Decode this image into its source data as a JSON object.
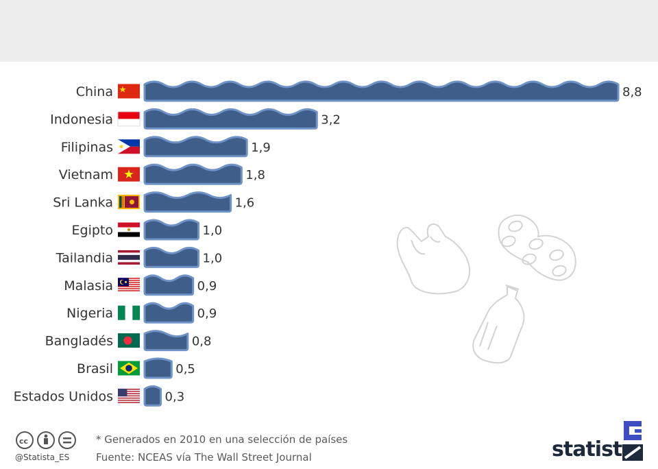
{
  "chart_data": {
    "type": "bar",
    "orientation": "horizontal",
    "categories": [
      "China",
      "Indonesia",
      "Filipinas",
      "Vietnam",
      "Sri Lanka",
      "Egipto",
      "Tailandia",
      "Malasia",
      "Nigeria",
      "Bangladés",
      "Brasil",
      "Estados Unidos"
    ],
    "values": [
      8.8,
      3.2,
      1.9,
      1.8,
      1.6,
      1.0,
      1.0,
      0.9,
      0.9,
      0.8,
      0.5,
      0.3
    ],
    "value_labels": [
      "8,8",
      "3,2",
      "1,9",
      "1,8",
      "1,6",
      "1,0",
      "1,0",
      "0,9",
      "0,9",
      "0,8",
      "0,5",
      "0,3"
    ],
    "flags": [
      "china-flag",
      "indonesia-flag",
      "philippines-flag",
      "vietnam-flag",
      "sri-lanka-flag",
      "egypt-flag",
      "thailand-flag",
      "malaysia-flag",
      "nigeria-flag",
      "bangladesh-flag",
      "brazil-flag",
      "usa-flag"
    ],
    "bar_color": "#3f5f8a",
    "wave_color": "#6f93c6",
    "xlim": [
      0,
      8.8
    ],
    "grid": false,
    "legend": "none"
  },
  "footer": {
    "note": "* Generados en 2010 en una selección de países",
    "source": "Fuente: NCEAS vía The Wall Street Journal",
    "handle": "@Statista_ES",
    "brand": "statista"
  },
  "icons": [
    "cc-icon",
    "by-icon",
    "nd-icon",
    "plastic-bag-icon",
    "six-pack-ring-icon",
    "plastic-bottle-icon",
    "statista-logo-icon"
  ]
}
